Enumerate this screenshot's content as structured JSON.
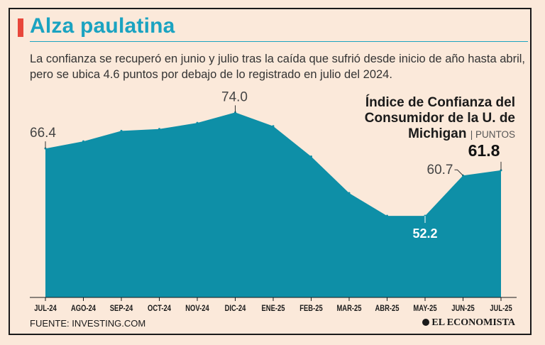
{
  "header": {
    "title": "Alza paulatina",
    "subtitle": "La confianza se recuperó en junio y julio tras la caída que sufrió desde inicio de año hasta abril, pero se ubica 4.6 puntos por debajo de lo registrado en julio del 2024."
  },
  "chart_data": {
    "type": "area",
    "title_lines": [
      "Índice de Confianza del",
      "Consumidor de la U. de",
      "Michigan"
    ],
    "units": "PUNTOS",
    "categories": [
      "JUL-24",
      "AGO-24",
      "SEP-24",
      "OCT-24",
      "NOV-24",
      "DIC-24",
      "ENE-25",
      "FEB-25",
      "MAR-25",
      "ABR-25",
      "MAY-25",
      "JUN-25",
      "JUL-25"
    ],
    "values": [
      66.4,
      67.9,
      70.1,
      70.5,
      71.8,
      74.0,
      71.1,
      64.7,
      57.0,
      52.2,
      52.2,
      60.7,
      61.8
    ],
    "labels": [
      {
        "index": 0,
        "text": "66.4"
      },
      {
        "index": 5,
        "text": "74.0"
      },
      {
        "index": 10,
        "text": "52.2"
      },
      {
        "index": 11,
        "text": "60.7"
      },
      {
        "index": 12,
        "text": "61.8"
      }
    ],
    "ylim": [
      35,
      76
    ],
    "colors": {
      "area": "#0e8fa7",
      "background": "#fbe9da",
      "accent": "#1ba3c1",
      "bar": "#e8473b"
    }
  },
  "footer": {
    "source": "FUENTE: INVESTING.COM",
    "brand": "EL ECONOMISTA"
  }
}
